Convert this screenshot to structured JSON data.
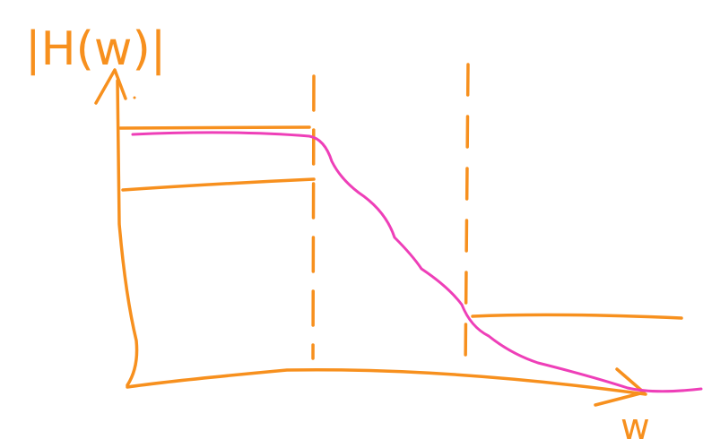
{
  "labels": {
    "y_axis": "|H(w)|",
    "x_axis": "w"
  }
}
